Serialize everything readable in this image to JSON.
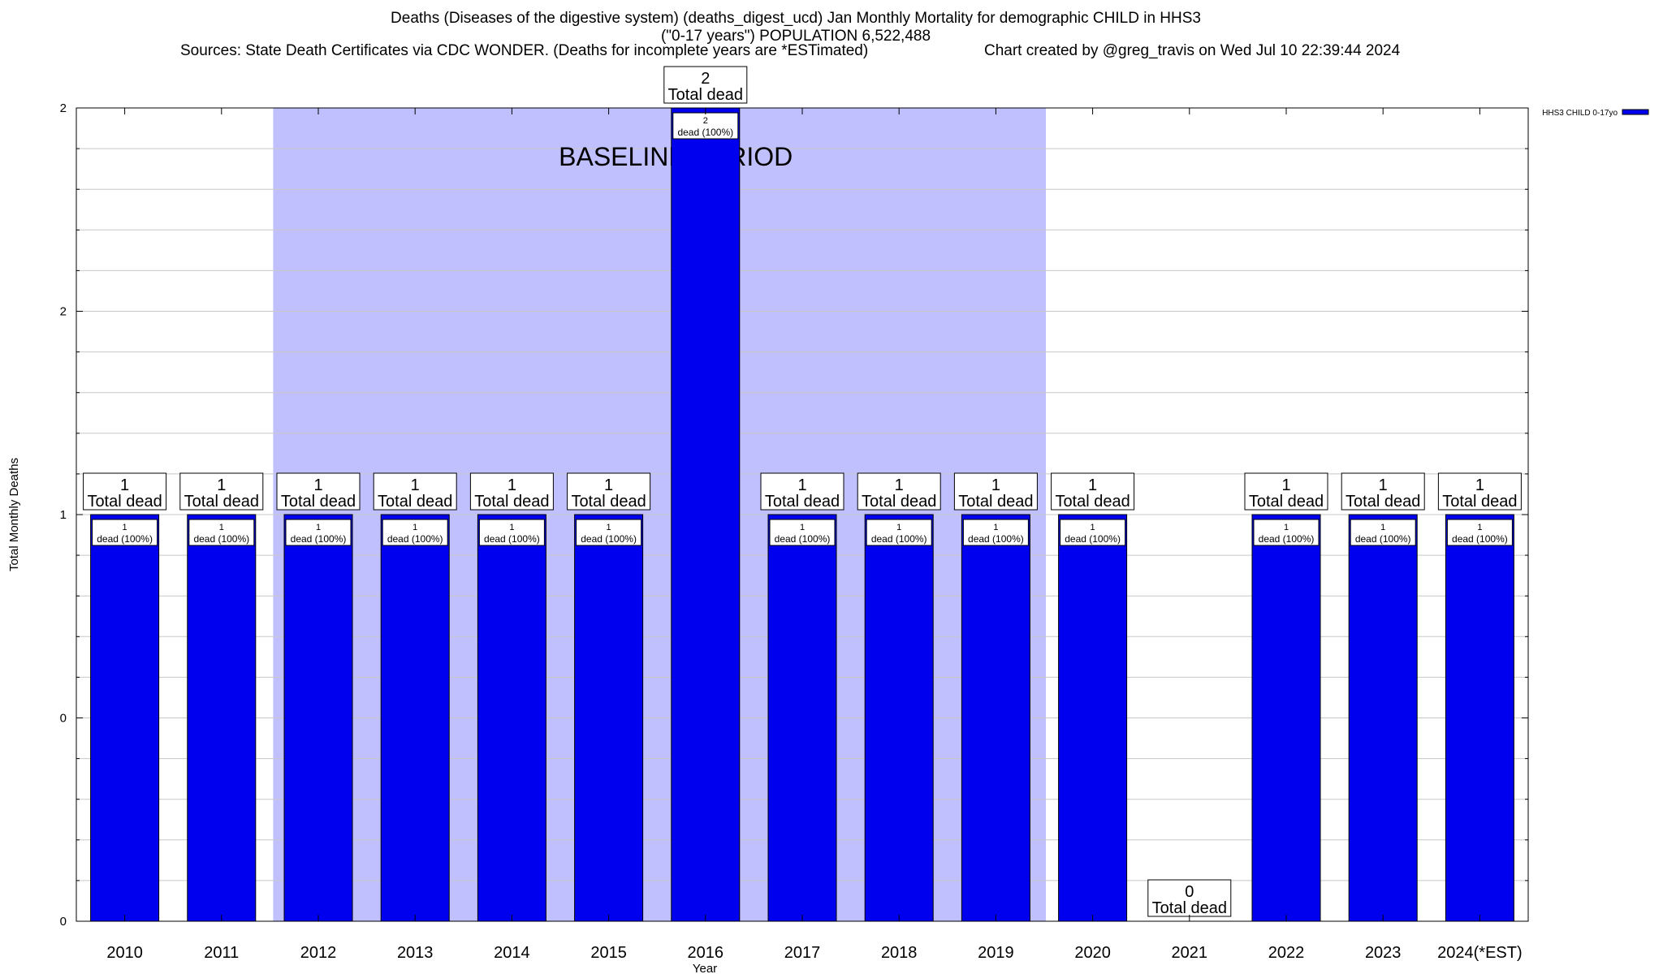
{
  "header": {
    "title_line1": "Deaths (Diseases of the digestive system) (deaths_digest_ucd) Jan Monthly Mortality for demographic CHILD in HHS3",
    "title_line2": "(\"0-17 years\") POPULATION 6,522,488",
    "sources": "Sources: State Death Certificates via CDC WONDER. (Deaths for incomplete years are *ESTimated)",
    "credit": "Chart created by @greg_travis on Wed Jul 10 22:39:44 2024"
  },
  "chart_data": {
    "type": "bar",
    "xlabel": "Year",
    "ylabel": "Total Monthly Deaths",
    "categories": [
      "2010",
      "2011",
      "2012",
      "2013",
      "2014",
      "2015",
      "2016",
      "2017",
      "2018",
      "2019",
      "2020",
      "2021",
      "2022",
      "2023",
      "2024(*EST)"
    ],
    "series": [
      {
        "name": "HHS3 CHILD 0-17yo",
        "values": [
          1,
          1,
          1,
          1,
          1,
          1,
          2,
          1,
          1,
          1,
          1,
          0,
          1,
          1,
          1
        ]
      }
    ],
    "y_tick_labels": [
      "0",
      "0",
      "1",
      "2",
      "2"
    ],
    "ylim": [
      0,
      2
    ],
    "grid": true,
    "legend_position": "top-right",
    "total_label_text": "Total dead",
    "inner_label_text": "dead (100%)",
    "baseline": {
      "label": "BASELINE PERIOD",
      "from": "2012",
      "to": "2019"
    },
    "colors": {
      "bar": "#0000ee",
      "baseline": "#c0c0ff",
      "grid": "#c8c8c8"
    }
  }
}
